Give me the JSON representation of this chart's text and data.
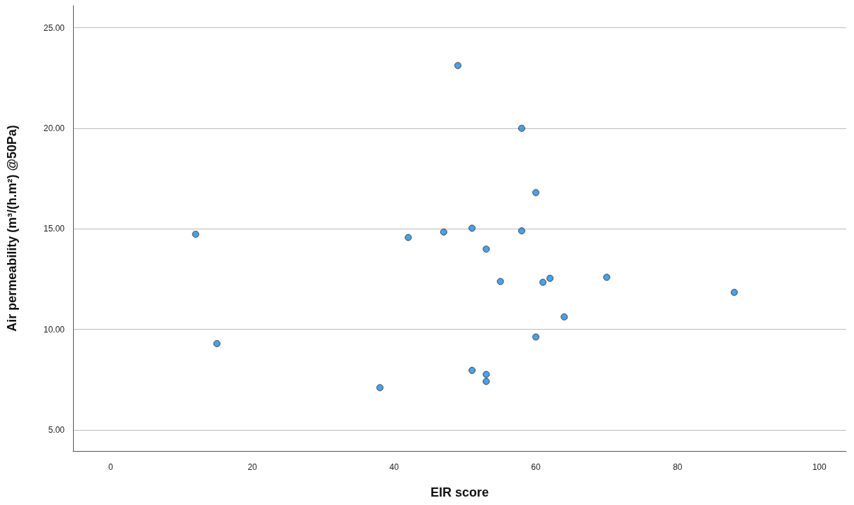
{
  "chart_data": {
    "type": "scatter",
    "xlabel": "EIR score",
    "ylabel": "Air permeability (m³/(h.m²) @50Pa)",
    "series": [
      {
        "color": "#1e88e0",
        "x": [
          12,
          15,
          38,
          42,
          47,
          49,
          51,
          51,
          53,
          53,
          53,
          55,
          58,
          58,
          60,
          60,
          61,
          62,
          64,
          70,
          88
        ],
        "values": [
          14.73,
          9.29,
          7.1,
          14.57,
          14.84,
          23.12,
          15.03,
          7.96,
          13.99,
          7.76,
          7.41,
          12.38,
          20.0,
          14.9,
          16.8,
          9.62,
          12.34,
          12.54,
          10.62,
          12.59,
          11.84
        ]
      }
    ],
    "xlim": [
      -5.3,
      103.8
    ],
    "xticks": [
      0,
      20,
      40,
      60,
      80,
      100
    ],
    "ylim": [
      3.95,
      26.1
    ],
    "yticks": [
      {
        "value": 5,
        "label": "5.00"
      },
      {
        "value": 10,
        "label": "10.00"
      },
      {
        "value": 15,
        "label": "15.00"
      },
      {
        "value": 20,
        "label": "20.00"
      },
      {
        "value": 25,
        "label": "25.00"
      }
    ],
    "grid": "y",
    "marker": "circle"
  }
}
